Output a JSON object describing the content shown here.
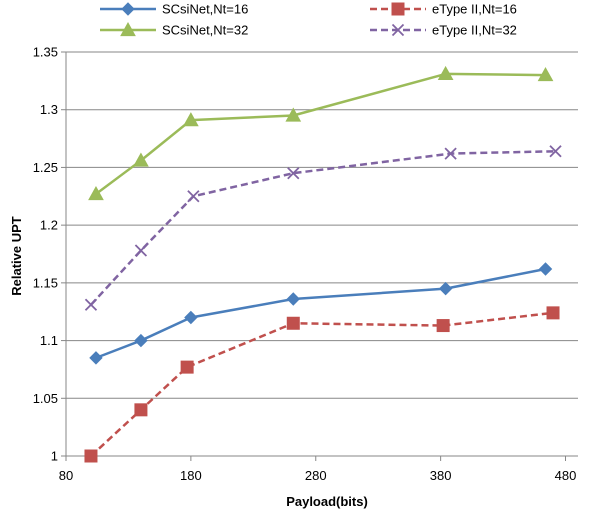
{
  "chart_data": {
    "type": "line",
    "title": "",
    "xlabel": "Payload(bits)",
    "ylabel": "Relative UPT",
    "xlim": [
      80,
      490
    ],
    "ylim": [
      1.0,
      1.35
    ],
    "xticks": [
      80,
      180,
      280,
      380,
      480
    ],
    "xtick_labels": [
      "80",
      "180",
      "280",
      "380",
      "480"
    ],
    "yticks": [
      1.0,
      1.05,
      1.1,
      1.15,
      1.2,
      1.25,
      1.3,
      1.35
    ],
    "ytick_labels": [
      "1",
      "1.05",
      "1.1",
      "1.15",
      "1.2",
      "1.25",
      "1.3",
      "1.35"
    ],
    "grid": "horizontal",
    "legend_position": "top",
    "series": [
      {
        "name": "SCsiNet,Nt=16",
        "color": "#4a7ebb",
        "marker": "diamond",
        "dash": "solid",
        "x": [
          104,
          140,
          180,
          262,
          384,
          464
        ],
        "y": [
          1.085,
          1.1,
          1.12,
          1.136,
          1.145,
          1.162
        ]
      },
      {
        "name": "eType II,Nt=16",
        "color": "#c0504d",
        "marker": "square",
        "dash": "dashed",
        "x": [
          100,
          140,
          177,
          262,
          382,
          470
        ],
        "y": [
          1.0,
          1.04,
          1.077,
          1.115,
          1.113,
          1.124
        ]
      },
      {
        "name": "SCsiNet,Nt=32",
        "color": "#9bbb59",
        "marker": "triangle",
        "dash": "solid",
        "x": [
          104,
          140,
          180,
          262,
          384,
          464
        ],
        "y": [
          1.227,
          1.256,
          1.291,
          1.295,
          1.331,
          1.33
        ]
      },
      {
        "name": "eType II,Nt=32",
        "color": "#8064a2",
        "marker": "x",
        "dash": "dashed",
        "x": [
          100,
          140,
          182,
          262,
          388,
          472
        ],
        "y": [
          1.131,
          1.178,
          1.225,
          1.245,
          1.262,
          1.264
        ]
      }
    ]
  }
}
